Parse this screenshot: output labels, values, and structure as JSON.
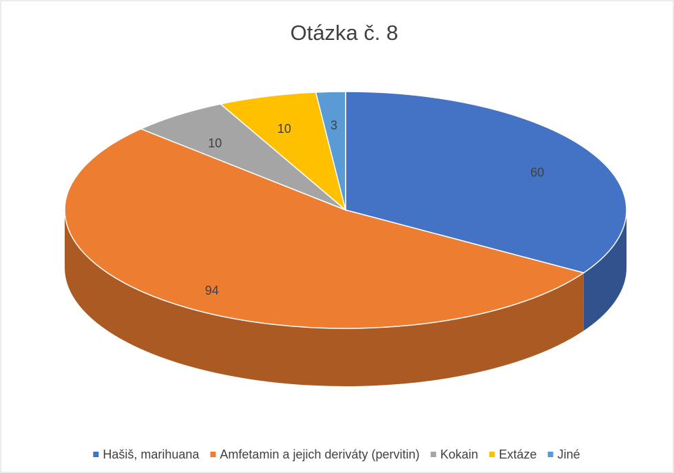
{
  "chart_data": {
    "type": "pie",
    "title": "Otázka č. 8",
    "categories": [
      "Hašiš, marihuana",
      "Amfetamin a jejich deriváty (pervitin)",
      "Kokain",
      "Extáze",
      "Jiné"
    ],
    "values": [
      60,
      94,
      10,
      10,
      3
    ],
    "colors": [
      "#4472c4",
      "#ed7d31",
      "#a5a5a5",
      "#ffc000",
      "#5b9bd5"
    ],
    "legend": "bottom"
  }
}
